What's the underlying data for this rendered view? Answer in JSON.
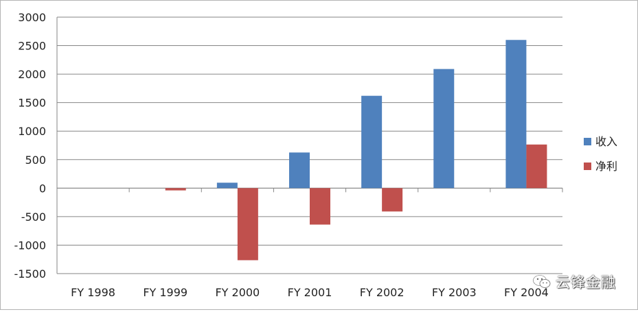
{
  "chart_data": {
    "type": "bar",
    "categories": [
      "FY 1998",
      "FY 1999",
      "FY 2000",
      "FY 2001",
      "FY 2002",
      "FY 2003",
      "FY 2004"
    ],
    "series": [
      {
        "name": "收入",
        "color": "#4F81BD",
        "values": [
          0,
          0,
          95,
          625,
          1620,
          2090,
          2600
        ]
      },
      {
        "name": "净利",
        "color": "#C0504D",
        "values": [
          0,
          -40,
          -1265,
          -640,
          -410,
          0,
          765
        ]
      }
    ],
    "ylim": [
      -1500,
      3000
    ],
    "yticks": [
      3000,
      2500,
      2000,
      1500,
      1000,
      500,
      0,
      -500,
      -1000,
      -1500
    ],
    "grid": true,
    "legend_position": "right"
  },
  "watermark": {
    "text": "云锋金融",
    "icon": "wechat-icon"
  }
}
